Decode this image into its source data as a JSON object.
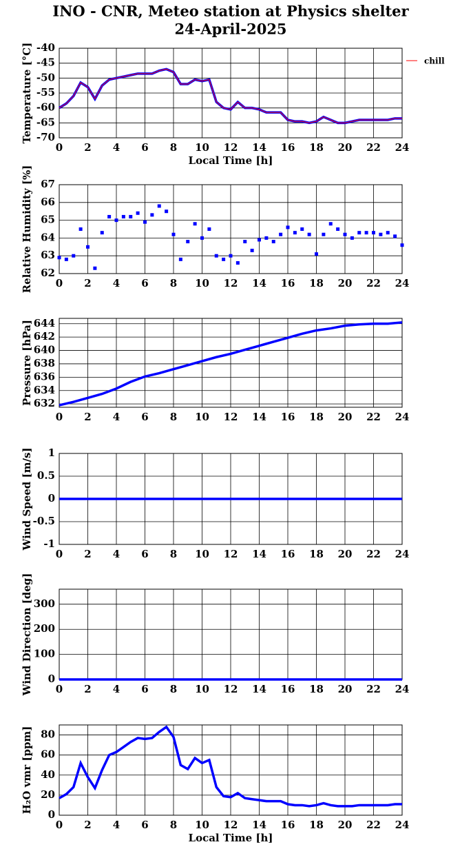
{
  "header": {
    "title": "INO - CNR, Meteo station at Physics shelter",
    "date": "24-April-2025"
  },
  "chart_data": [
    {
      "type": "line",
      "ylabel": "Temperature [°C]",
      "xlabel": "Local Time [h]",
      "xlim": [
        0,
        24
      ],
      "xticks": [
        0,
        2,
        4,
        6,
        8,
        10,
        12,
        14,
        16,
        18,
        20,
        22,
        24
      ],
      "ylim": [
        -70,
        -40
      ],
      "yticks": [
        -70,
        -65,
        -60,
        -55,
        -50,
        -45,
        -40
      ],
      "grid": true,
      "legend": "right",
      "x": [
        0,
        0.5,
        1,
        1.5,
        2,
        2.5,
        3,
        3.5,
        4,
        4.5,
        5,
        5.5,
        6,
        6.5,
        7,
        7.5,
        8,
        8.5,
        9,
        9.5,
        10,
        10.5,
        11,
        11.5,
        12,
        12.5,
        13,
        13.5,
        14,
        14.5,
        15,
        15.5,
        16,
        16.5,
        17,
        17.5,
        18,
        18.5,
        19,
        19.5,
        20,
        20.5,
        21,
        21.5,
        22,
        22.5,
        23,
        23.5,
        24
      ],
      "series": [
        {
          "name": "chill",
          "color": "#ff0000",
          "under_color": "#0000ff",
          "values": [
            -60,
            -58.5,
            -56,
            -51.5,
            -53,
            -57,
            -52.5,
            -50.5,
            -50,
            -49.5,
            -49,
            -48.5,
            -48.5,
            -48.5,
            -47.5,
            -47,
            -48,
            -52,
            -52,
            -50.5,
            -51,
            -50.5,
            -58,
            -60,
            -60.5,
            -58,
            -60,
            -60,
            -60.5,
            -61.5,
            -61.5,
            -61.5,
            -64,
            -64.5,
            -64.5,
            -65,
            -64.5,
            -63,
            -64,
            -65,
            -65,
            -64.5,
            -64,
            -64,
            -64,
            -64,
            -64,
            -63.5,
            -63.5
          ]
        }
      ]
    },
    {
      "type": "scatter",
      "ylabel": "Relative Humidity [%]",
      "xlim": [
        0,
        24
      ],
      "xticks": [
        0,
        2,
        4,
        6,
        8,
        10,
        12,
        14,
        16,
        18,
        20,
        22,
        24
      ],
      "ylim": [
        62,
        67
      ],
      "yticks": [
        62,
        63,
        64,
        65,
        66,
        67
      ],
      "grid": true,
      "x": [
        0,
        0.5,
        1,
        1.5,
        2,
        2.5,
        3,
        3.5,
        4,
        4.5,
        5,
        5.5,
        6,
        6.5,
        7,
        7.5,
        8,
        8.5,
        9,
        9.5,
        10,
        10.5,
        11,
        11.5,
        12,
        12.5,
        13,
        13.5,
        14,
        14.5,
        15,
        15.5,
        16,
        16.5,
        17,
        17.5,
        18,
        18.5,
        19,
        19.5,
        20,
        20.5,
        21,
        21.5,
        22,
        22.5,
        23,
        23.5,
        24
      ],
      "series": [
        {
          "color": "#0000ff",
          "values": [
            62.9,
            62.8,
            63,
            64.5,
            63.5,
            62.3,
            64.3,
            65.2,
            65,
            65.2,
            65.2,
            65.4,
            64.9,
            65.3,
            65.8,
            65.5,
            64.2,
            62.8,
            63.8,
            64.8,
            64,
            64.5,
            63,
            62.8,
            63,
            62.6,
            63.8,
            63.3,
            63.9,
            64,
            63.8,
            64.2,
            64.6,
            64.3,
            64.5,
            64.2,
            63.1,
            64.2,
            64.8,
            64.5,
            64.2,
            64,
            64.3,
            64.3,
            64.3,
            64.2,
            64.3,
            64.1,
            63.6
          ]
        }
      ]
    },
    {
      "type": "line",
      "ylabel": "Pressure [hPa]",
      "xlim": [
        0,
        24
      ],
      "xticks": [
        0,
        2,
        4,
        6,
        8,
        10,
        12,
        14,
        16,
        18,
        20,
        22,
        24
      ],
      "ylim": [
        631.5,
        644.8
      ],
      "yticks": [
        632,
        634,
        636,
        638,
        640,
        642,
        644
      ],
      "grid": true,
      "x": [
        0,
        1,
        2,
        3,
        4,
        5,
        6,
        7,
        8,
        9,
        10,
        11,
        12,
        13,
        14,
        15,
        16,
        17,
        18,
        19,
        20,
        21,
        22,
        23,
        24
      ],
      "series": [
        {
          "color": "#0000ff",
          "values": [
            631.8,
            632.3,
            632.9,
            633.5,
            634.3,
            635.3,
            636.1,
            636.6,
            637.2,
            637.8,
            638.4,
            639,
            639.5,
            640.1,
            640.7,
            641.3,
            641.9,
            642.5,
            643,
            643.3,
            643.7,
            643.9,
            644,
            644,
            644.2
          ]
        }
      ]
    },
    {
      "type": "line",
      "ylabel": "Wind Speed [m/s]",
      "xlim": [
        0,
        24
      ],
      "xticks": [
        0,
        2,
        4,
        6,
        8,
        10,
        12,
        14,
        16,
        18,
        20,
        22,
        24
      ],
      "ylim": [
        -1,
        1
      ],
      "yticks": [
        -1,
        -0.5,
        0,
        0.5,
        1
      ],
      "grid": true,
      "x": [
        0,
        2,
        4,
        6,
        8,
        10,
        12,
        14,
        16,
        18,
        20,
        22,
        24
      ],
      "series": [
        {
          "color": "#0000ff",
          "values": [
            0,
            0,
            0,
            0,
            0,
            0,
            0,
            0,
            0,
            0,
            0,
            0,
            0
          ]
        }
      ]
    },
    {
      "type": "line",
      "ylabel": "Wind Direction [deg]",
      "xlim": [
        0,
        24
      ],
      "xticks": [
        0,
        2,
        4,
        6,
        8,
        10,
        12,
        14,
        16,
        18,
        20,
        22,
        24
      ],
      "ylim": [
        0,
        360
      ],
      "yticks": [
        0,
        100,
        200,
        300
      ],
      "grid": true,
      "x": [
        0,
        2,
        4,
        6,
        8,
        10,
        12,
        14,
        16,
        18,
        20,
        22,
        24
      ],
      "series": [
        {
          "color": "#0000ff",
          "values": [
            0,
            0,
            0,
            0,
            0,
            0,
            0,
            0,
            0,
            0,
            0,
            0,
            0
          ]
        }
      ]
    },
    {
      "type": "line",
      "ylabel": "H₂O vmr [ppm]",
      "xlabel": "Local Time [h]",
      "xlim": [
        0,
        24
      ],
      "xticks": [
        0,
        2,
        4,
        6,
        8,
        10,
        12,
        14,
        16,
        18,
        20,
        22,
        24
      ],
      "ylim": [
        0,
        90
      ],
      "yticks": [
        0,
        20,
        40,
        60,
        80
      ],
      "grid": true,
      "x": [
        0,
        0.5,
        1,
        1.5,
        2,
        2.5,
        3,
        3.5,
        4,
        4.5,
        5,
        5.5,
        6,
        6.5,
        7,
        7.5,
        8,
        8.5,
        9,
        9.5,
        10,
        10.5,
        11,
        11.5,
        12,
        12.5,
        13,
        13.5,
        14,
        14.5,
        15,
        15.5,
        16,
        16.5,
        17,
        17.5,
        18,
        18.5,
        19,
        19.5,
        20,
        20.5,
        21,
        21.5,
        22,
        22.5,
        23,
        23.5,
        24
      ],
      "series": [
        {
          "color": "#0000ff",
          "values": [
            17,
            21,
            28,
            52,
            38,
            27,
            45,
            60,
            63,
            68,
            73,
            77,
            76,
            77,
            83,
            88,
            78,
            50,
            46,
            57,
            52,
            55,
            28,
            19,
            18,
            22,
            17,
            16,
            15,
            14,
            14,
            14,
            11,
            10,
            10,
            9,
            10,
            12,
            10,
            9,
            9,
            9,
            10,
            10,
            10,
            10,
            10,
            11,
            11
          ]
        }
      ]
    }
  ]
}
